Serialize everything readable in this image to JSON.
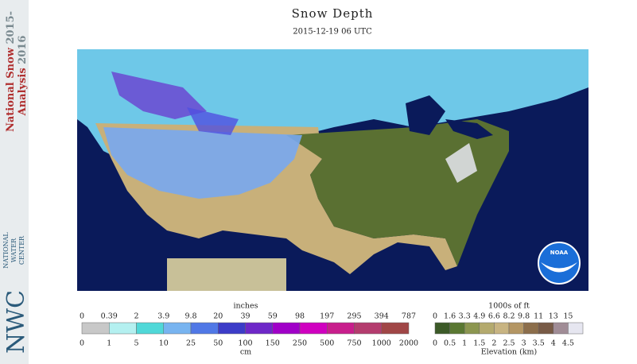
{
  "header": {
    "title": "Snow Depth",
    "date": "2015-12-19 06 UTC"
  },
  "sidebar": {
    "line1": "National Snow",
    "year1": "2015-",
    "line2": "Analysis",
    "year2": "2016",
    "logo": "NWC",
    "org": [
      "NATIONAL",
      "WATER",
      "CENTER"
    ]
  },
  "map": {
    "logo": "NOAA"
  },
  "snow_legend": {
    "top_unit": "inches",
    "bottom_unit": "cm",
    "top_labels": [
      "0",
      "0.39",
      "2",
      "3.9",
      "9.8",
      "20",
      "39",
      "59",
      "98",
      "197",
      "295",
      "394",
      "787"
    ],
    "bottom_labels": [
      "0",
      "1",
      "5",
      "10",
      "25",
      "50",
      "100",
      "150",
      "250",
      "500",
      "750",
      "1000",
      "2000"
    ],
    "colors": [
      "#c8c8c8",
      "#b4f0f0",
      "#50d8d8",
      "#78b4f0",
      "#5078e6",
      "#3c3cc8",
      "#6e28c8",
      "#a000c8",
      "#d000c0",
      "#c81e8c",
      "#b43c6e",
      "#a04646"
    ]
  },
  "elevation_legend": {
    "top_unit": "1000s of ft",
    "bottom_unit": "Elevation (km)",
    "top_labels": [
      "0",
      "1.6",
      "3.3",
      "4.9",
      "6.6",
      "8.2",
      "9.8",
      "11",
      "13",
      "15"
    ],
    "bottom_labels": [
      "0",
      "0.5",
      "1",
      "1.5",
      "2",
      "2.5",
      "3",
      "3.5",
      "4",
      "4.5"
    ],
    "colors": [
      "#3c5a28",
      "#5a7832",
      "#8c9650",
      "#b4aa6e",
      "#c8b482",
      "#b49664",
      "#8c6e4b",
      "#785a46",
      "#a08c96",
      "#e6e6f0"
    ]
  }
}
